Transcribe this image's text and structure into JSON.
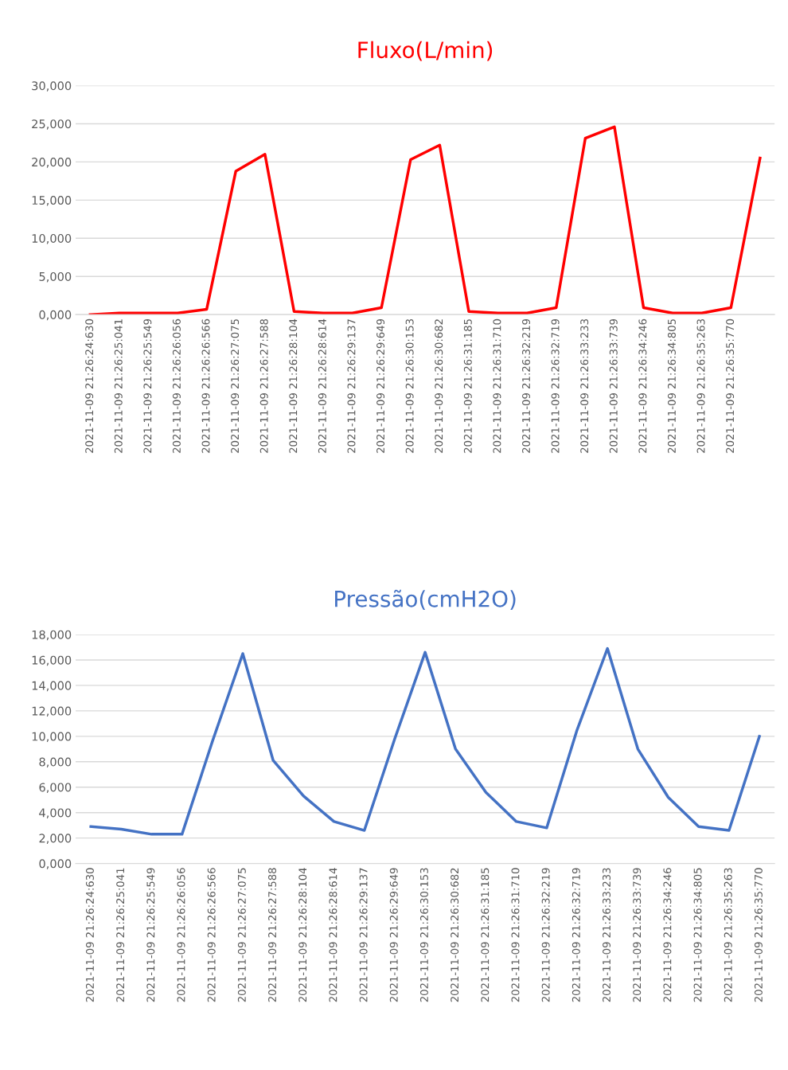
{
  "chart_data": [
    {
      "type": "line",
      "title": "Fluxo(L/min)",
      "categories": [
        "2021-11-09 21:26:24:630",
        "2021-11-09 21:26:25:041",
        "2021-11-09 21:26:25:549",
        "2021-11-09 21:26:26:056",
        "2021-11-09 21:26:26:566",
        "2021-11-09 21:26:27:075",
        "2021-11-09 21:26:27:588",
        "2021-11-09 21:26:28:104",
        "2021-11-09 21:26:28:614",
        "2021-11-09 21:26:29:137",
        "2021-11-09 21:26:29:649",
        "2021-11-09 21:26:30:153",
        "2021-11-09 21:26:30:682",
        "2021-11-09 21:26:31:185",
        "2021-11-09 21:26:31:710",
        "2021-11-09 21:26:32:219",
        "2021-11-09 21:26:32:719",
        "2021-11-09 21:26:33:233",
        "2021-11-09 21:26:33:739",
        "2021-11-09 21:26:34:246",
        "2021-11-09 21:26:34:805",
        "2021-11-09 21:26:35:263",
        "2021-11-09 21:26:35:770",
        null
      ],
      "series": [
        {
          "color": "#ff0000",
          "values": [
            0,
            0.2,
            0.2,
            0.2,
            0.7,
            18.8,
            21.0,
            0.4,
            0.2,
            0.2,
            0.9,
            20.3,
            22.2,
            0.4,
            0.2,
            0.2,
            0.9,
            23.1,
            24.6,
            0.9,
            0.2,
            0.2,
            0.9,
            20.5
          ]
        }
      ],
      "ylim": [
        0,
        30
      ],
      "yticks": [
        {
          "value": 0,
          "label": "0,000"
        },
        {
          "value": 5,
          "label": "5,000"
        },
        {
          "value": 10,
          "label": "10,000"
        },
        {
          "value": 15,
          "label": "15,000"
        },
        {
          "value": 20,
          "label": "20,000"
        },
        {
          "value": 25,
          "label": "25,000"
        },
        {
          "value": 30,
          "label": "30,000"
        }
      ],
      "grid": "y",
      "legend": false,
      "marker": "none",
      "line_style": "solid"
    },
    {
      "type": "line",
      "title": "Pressão(cmH2O)",
      "categories": [
        "2021-11-09 21:26:24:630",
        "2021-11-09 21:26:25:041",
        "2021-11-09 21:26:25:549",
        "2021-11-09 21:26:26:056",
        "2021-11-09 21:26:26:566",
        "2021-11-09 21:26:27:075",
        "2021-11-09 21:26:27:588",
        "2021-11-09 21:26:28:104",
        "2021-11-09 21:26:28:614",
        "2021-11-09 21:26:29:137",
        "2021-11-09 21:26:29:649",
        "2021-11-09 21:26:30:153",
        "2021-11-09 21:26:30:682",
        "2021-11-09 21:26:31:185",
        "2021-11-09 21:26:31:710",
        "2021-11-09 21:26:32:219",
        "2021-11-09 21:26:32:719",
        "2021-11-09 21:26:33:233",
        "2021-11-09 21:26:33:739",
        "2021-11-09 21:26:34:246",
        "2021-11-09 21:26:34:805",
        "2021-11-09 21:26:35:263",
        "2021-11-09 21:26:35:770"
      ],
      "series": [
        {
          "color": "#4472c4",
          "values": [
            2.9,
            2.7,
            2.3,
            2.3,
            9.6,
            16.5,
            8.1,
            5.3,
            3.3,
            2.6,
            9.8,
            16.6,
            9.0,
            5.6,
            3.3,
            2.8,
            10.5,
            16.9,
            9.0,
            5.2,
            2.9,
            2.6,
            10.0
          ]
        }
      ],
      "ylim": [
        0,
        18
      ],
      "yticks": [
        {
          "value": 0,
          "label": "0,000"
        },
        {
          "value": 2,
          "label": "2,000"
        },
        {
          "value": 4,
          "label": "4,000"
        },
        {
          "value": 6,
          "label": "6,000"
        },
        {
          "value": 8,
          "label": "8,000"
        },
        {
          "value": 10,
          "label": "10,000"
        },
        {
          "value": 12,
          "label": "12,000"
        },
        {
          "value": 14,
          "label": "14,000"
        },
        {
          "value": 16,
          "label": "16,000"
        },
        {
          "value": 18,
          "label": "18,000"
        }
      ],
      "grid": "y",
      "legend": false,
      "marker": "none",
      "line_style": "solid"
    }
  ]
}
